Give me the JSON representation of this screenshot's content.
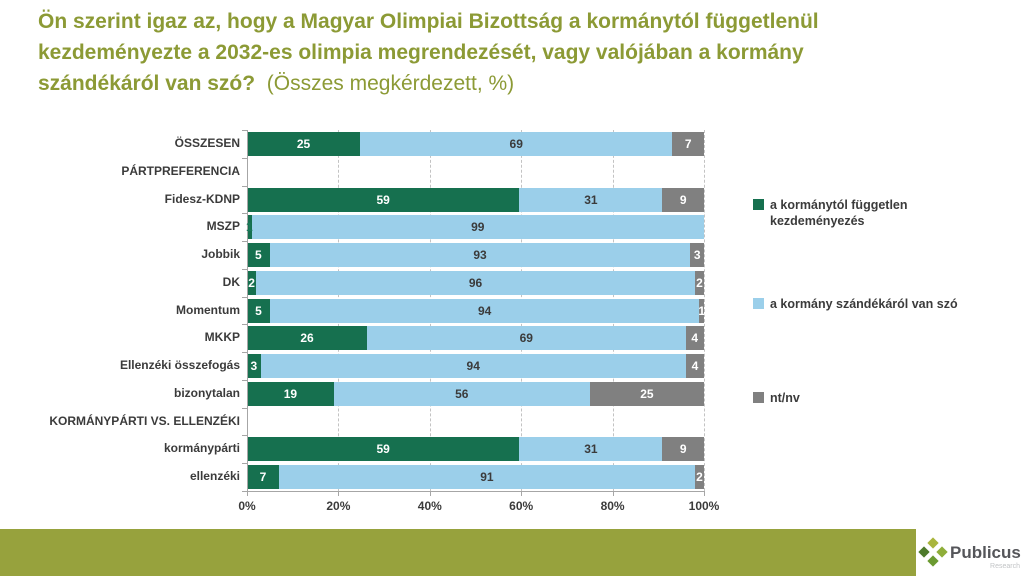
{
  "title": {
    "question": "Ön szerint igaz az, hogy a Magyar Olimpiai Bizottság a kormánytól függetlenül kezdeményezte a 2032-es olimpia megrendezését, vagy valójában a kormány szándékáról van szó?",
    "note": "(Összes megkérdezett, %)"
  },
  "chart_data": {
    "type": "bar",
    "subtype": "horizontal_stacked_100pct",
    "unit": "%",
    "xlim": [
      0,
      100
    ],
    "x_ticks": [
      "0%",
      "20%",
      "40%",
      "60%",
      "80%",
      "100%"
    ],
    "grid": "vertical-dashed",
    "legend_position": "right",
    "series": [
      {
        "key": "independent",
        "name": "a kormánytól független kezdeményezés",
        "color": "#16704F",
        "label_color": "#FFFFFF"
      },
      {
        "key": "government",
        "name": "a kormány szándékáról van szó",
        "color": "#9BCFEA",
        "label_color": "#3B3B3B"
      },
      {
        "key": "ntnv",
        "name": "nt/nv",
        "color": "#808080",
        "label_color": "#FFFFFF"
      }
    ],
    "rows": [
      {
        "label": "ÖSSZESEN",
        "values": [
          25,
          69,
          7
        ]
      },
      {
        "label": "PÁRTPREFERENCIA",
        "header": true
      },
      {
        "label": "Fidesz-KDNP",
        "values": [
          59,
          31,
          9
        ]
      },
      {
        "label": "MSZP",
        "values": [
          1,
          99,
          0
        ],
        "label_color_overrides": {
          "0": "#1B7A5A"
        }
      },
      {
        "label": "Jobbik",
        "values": [
          5,
          93,
          3
        ]
      },
      {
        "label": "DK",
        "values": [
          2,
          96,
          2
        ]
      },
      {
        "label": "Momentum",
        "values": [
          5,
          94,
          1
        ]
      },
      {
        "label": "MKKP",
        "values": [
          26,
          69,
          4
        ]
      },
      {
        "label": "Ellenzéki összefogás",
        "values": [
          3,
          94,
          4
        ]
      },
      {
        "label": "bizonytalan",
        "values": [
          19,
          56,
          25
        ]
      },
      {
        "label": "KORMÁNYPÁRTI VS. ELLENZÉKI",
        "header": true
      },
      {
        "label": "kormánypárti",
        "values": [
          59,
          31,
          9
        ]
      },
      {
        "label": "ellenzéki",
        "values": [
          7,
          91,
          2
        ]
      }
    ]
  },
  "colors": {
    "title": "#8C9A35",
    "footer_bar": "#97A23D",
    "axis": "#A6A6A6",
    "gridline": "#C3C3C3",
    "text": "#3B3B3B"
  },
  "footer": {
    "brand": "Publicus",
    "brand_sub": "Research"
  }
}
